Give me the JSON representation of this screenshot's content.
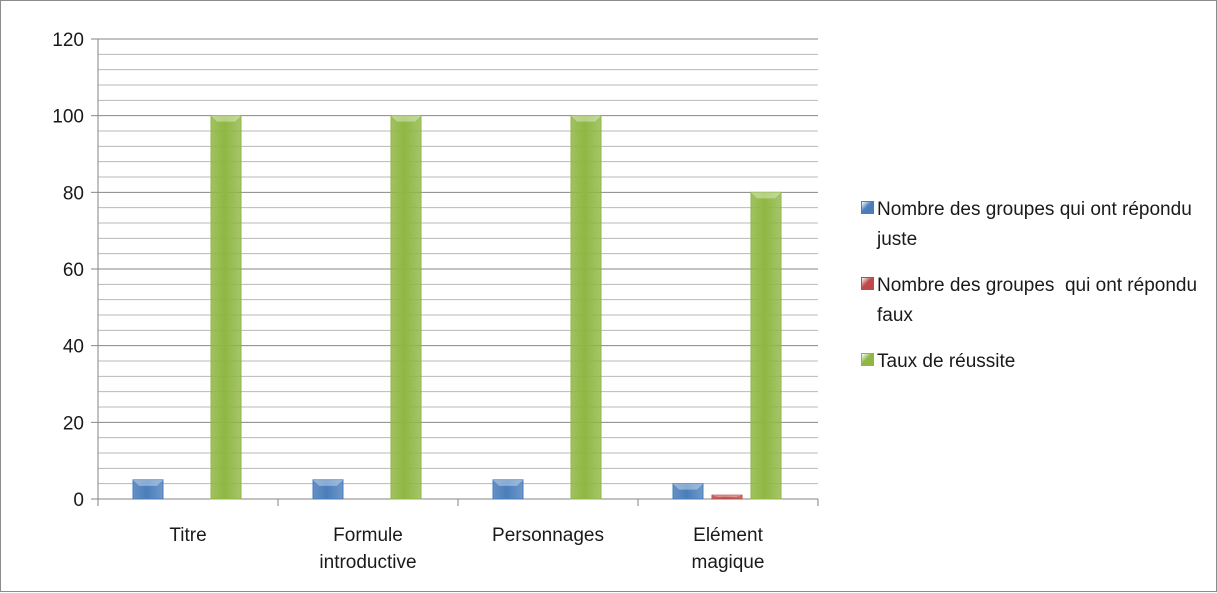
{
  "chart_data": {
    "type": "bar",
    "categories": [
      [
        "Titre"
      ],
      [
        "Formule",
        "introductive"
      ],
      [
        "Personnages"
      ],
      [
        "Elément",
        "magique"
      ]
    ],
    "series": [
      {
        "name": "Nombre des groupes qui ont répondu juste",
        "values": [
          5,
          5,
          5,
          4
        ],
        "color": "#4a7ebb"
      },
      {
        "name": "Nombre des groupes  qui ont répondu faux",
        "values": [
          0,
          0,
          0,
          1
        ],
        "color": "#be4b48"
      },
      {
        "name": "Taux de réussite",
        "values": [
          100,
          100,
          100,
          80
        ],
        "color": "#8fb744"
      }
    ],
    "ylim": [
      0,
      120
    ],
    "yticks": [
      0,
      20,
      40,
      60,
      80,
      100,
      120
    ],
    "minor_gridline_step": 4,
    "grid": true,
    "legend_position": "right",
    "title": "",
    "xlabel": "",
    "ylabel": ""
  }
}
